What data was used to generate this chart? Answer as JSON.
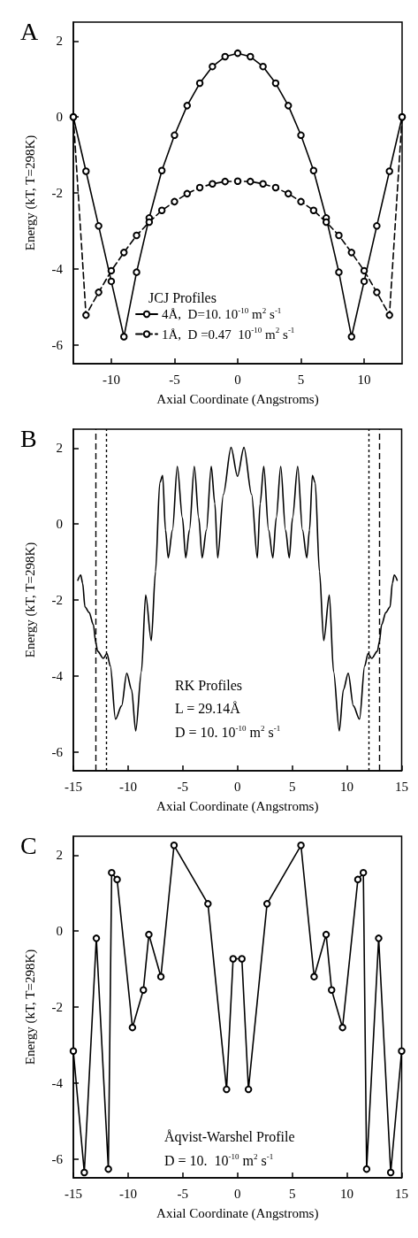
{
  "chart_data": [
    {
      "type": "line",
      "title": "A",
      "xlabel": "Axial Coordinate (Angstroms)",
      "ylabel": "Energy (kT, T=298K)",
      "legend_title": "JCJ Profiles",
      "legend": "bottom",
      "x": [
        -13,
        -12,
        -11,
        -10,
        -9,
        -8,
        -7,
        -6,
        -5,
        -4,
        -3,
        -2,
        -1,
        0,
        1,
        2,
        3,
        4,
        5,
        6,
        7,
        8,
        9,
        10,
        11,
        12,
        13
      ],
      "series": [
        {
          "name": "4Å,  D=10. 10$^{-10}$ m$^{2}$ s$^{-1}$",
          "color": "#000000",
          "marker": "circle",
          "line_style": "solid",
          "values": [
            0,
            -1.43,
            -2.87,
            -4.33,
            -5.79,
            -4.09,
            -2.66,
            -1.41,
            -0.48,
            0.3,
            0.89,
            1.33,
            1.59,
            1.68,
            1.59,
            1.33,
            0.89,
            0.3,
            -0.48,
            -1.41,
            -2.66,
            -4.09,
            -5.79,
            -4.33,
            -2.87,
            -1.43,
            0
          ]
        },
        {
          "name": "1Å,  D =0.47  10$^{-10}$ m$^{2}$ s$^{-1}$",
          "color": "#000000",
          "marker": "circle",
          "line_style": "dashed",
          "values": [
            0,
            -5.22,
            -4.62,
            -4.05,
            -3.57,
            -3.12,
            -2.77,
            -2.46,
            -2.23,
            -2.02,
            -1.86,
            -1.76,
            -1.7,
            -1.69,
            -1.7,
            -1.76,
            -1.86,
            -2.02,
            -2.23,
            -2.46,
            -2.77,
            -3.12,
            -3.57,
            -4.05,
            -4.62,
            -5.22,
            0
          ]
        }
      ],
      "xlim": [
        -13,
        13
      ],
      "xticks": [
        -10,
        -5,
        0,
        5,
        10
      ],
      "ylim": [
        -6.5,
        2.5
      ],
      "yticks": [
        -6,
        -4,
        -2,
        0,
        2
      ]
    },
    {
      "type": "line",
      "title": "B",
      "xlabel": "Axial Coordinate (Angstroms)",
      "ylabel": "Energy (kT, T=298K)",
      "marker": "none",
      "line_style": "solid",
      "annotations": [
        "RK Profiles",
        "L = 29.14Å",
        "D = 10. 10$^{-10}$ m$^{2}$ s$^{-1}$"
      ],
      "x": [
        -14.59,
        -14.33,
        -14.15,
        -13.94,
        -13.56,
        -13.17,
        -12.96,
        -12.78,
        -12.27,
        -11.93,
        -11.62,
        -11.15,
        -10.59,
        -10.12,
        -9.68,
        -9.3,
        -8.78,
        -8.39,
        -7.88,
        -7.49,
        -7.1,
        -6.84,
        -6.58,
        -6.33,
        -5.94,
        -5.5,
        -5.03,
        -4.73,
        -4.39,
        -3.95,
        -3.54,
        -3.23,
        -2.84,
        -2.4,
        -2.07,
        -1.81,
        -1.29,
        -0.59,
        0,
        0.59,
        1.29,
        1.81,
        2.07,
        2.4,
        2.84,
        3.23,
        3.54,
        3.95,
        4.39,
        4.73,
        5.03,
        5.5,
        5.94,
        6.33,
        6.58,
        6.84,
        7.1,
        7.49,
        7.88,
        8.39,
        8.78,
        9.3,
        9.68,
        10.12,
        10.59,
        11.15,
        11.62,
        11.93,
        12.27,
        12.78,
        12.96,
        13.17,
        13.56,
        13.94,
        14.15,
        14.33,
        14.59
      ],
      "series": [
        {
          "color": "#000000",
          "values": [
            -1.48,
            -1.34,
            -1.56,
            -2.18,
            -2.33,
            -2.65,
            -3.11,
            -3.35,
            -3.54,
            -3.41,
            -3.74,
            -5.14,
            -4.79,
            -3.93,
            -4.36,
            -5.45,
            -3.89,
            -1.87,
            -3.07,
            -1.25,
            1.09,
            1.28,
            -0.16,
            -0.89,
            -0.16,
            1.52,
            0.16,
            -0.89,
            -0.16,
            1.52,
            0.16,
            -0.89,
            -0.16,
            1.52,
            0.54,
            -0.89,
            0.78,
            2.02,
            1.26,
            2.02,
            0.78,
            -0.89,
            0.54,
            1.52,
            -0.16,
            -0.89,
            0.16,
            1.52,
            -0.16,
            -0.89,
            0.16,
            1.52,
            -0.16,
            -0.89,
            -0.16,
            1.28,
            1.09,
            -1.25,
            -3.07,
            -1.87,
            -3.89,
            -5.45,
            -4.36,
            -3.93,
            -4.79,
            -5.14,
            -3.74,
            -3.41,
            -3.54,
            -3.35,
            -3.11,
            -2.65,
            -2.33,
            -2.18,
            -1.56,
            -1.34,
            -1.48
          ]
        }
      ],
      "ref_lines": [
        {
          "axis": "x",
          "value": -13,
          "line_style": "dashed"
        },
        {
          "axis": "x",
          "value": -12,
          "line_style": "dotted"
        },
        {
          "axis": "x",
          "value": 12,
          "line_style": "dotted"
        },
        {
          "axis": "x",
          "value": 13,
          "line_style": "dashed"
        }
      ],
      "xlim": [
        -15,
        15
      ],
      "xticks": [
        -15,
        -10,
        -5,
        0,
        5,
        10,
        15
      ],
      "ylim": [
        -6.5,
        2.5
      ],
      "yticks": [
        -6,
        -4,
        -2,
        0,
        2
      ]
    },
    {
      "type": "line",
      "title": "C",
      "xlabel": "Axial Coordinate (Angstroms)",
      "ylabel": "Energy (kT, T=298K)",
      "marker": "circle",
      "line_style": "solid",
      "annotations": [
        "Åqvist-Warshel Profile",
        "D = 10.  10$^{-10}$ m$^{2}$ s$^{-1}$"
      ],
      "x": [
        -15,
        -14.0,
        -12.9,
        -11.8,
        -11.5,
        -11.0,
        -9.6,
        -8.6,
        -8.1,
        -7.0,
        -5.8,
        -2.7,
        -1.0,
        -0.4,
        0.4,
        1.0,
        2.7,
        5.8,
        7.0,
        8.1,
        8.6,
        9.6,
        11.0,
        11.5,
        11.8,
        12.9,
        14.0,
        15
      ],
      "series": [
        {
          "color": "#000000",
          "values": [
            -3.16,
            -6.36,
            -0.19,
            -6.27,
            1.54,
            1.36,
            -2.54,
            -1.55,
            -0.09,
            -1.2,
            2.26,
            0.72,
            -4.17,
            -0.73,
            -0.73,
            -4.17,
            0.72,
            2.26,
            -1.2,
            -0.09,
            -1.55,
            -2.54,
            1.36,
            1.54,
            -6.27,
            -0.19,
            -6.36,
            -3.16
          ]
        }
      ],
      "xlim": [
        -15,
        15
      ],
      "xticks": [
        -15,
        -10,
        -5,
        0,
        5,
        10,
        15
      ],
      "ylim": [
        -6.5,
        2.5
      ],
      "yticks": [
        -6,
        -4,
        -2,
        0,
        2
      ]
    }
  ]
}
